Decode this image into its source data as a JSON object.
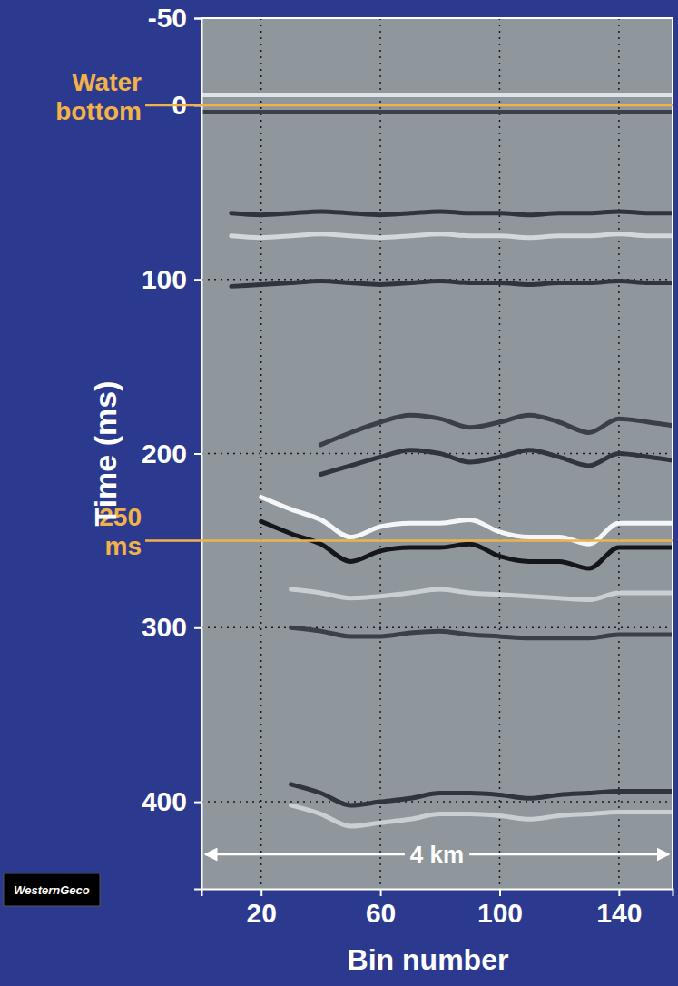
{
  "chart_data": {
    "type": "line",
    "x_label": "Bin number",
    "y_label": "Time (ms)",
    "x": [
      0,
      10,
      20,
      30,
      40,
      50,
      60,
      70,
      80,
      90,
      100,
      110,
      120,
      130,
      140,
      150,
      158
    ],
    "series": [
      {
        "color": "#dfe3e6",
        "values": [
          -6,
          -6,
          -6,
          -6,
          -6,
          -6,
          -6,
          -6,
          -6,
          -6,
          -6,
          -6,
          -6,
          -6,
          -6,
          -6,
          -6
        ]
      },
      {
        "color": "#3a3f48",
        "values": [
          4,
          4,
          4,
          4,
          4,
          4,
          4,
          4,
          4,
          4,
          4,
          4,
          4,
          4,
          4,
          4,
          4
        ]
      },
      {
        "color": "#30343c",
        "values": [
          null,
          62,
          63,
          62,
          61,
          62,
          63,
          62,
          61,
          62,
          62,
          63,
          62,
          62,
          61,
          62,
          62
        ]
      },
      {
        "color": "#d3d8dc",
        "values": [
          null,
          75,
          76,
          75,
          74,
          75,
          76,
          75,
          74,
          75,
          75,
          76,
          75,
          75,
          74,
          75,
          75
        ]
      },
      {
        "color": "#30343c",
        "values": [
          null,
          104,
          103,
          102,
          101,
          102,
          103,
          102,
          101,
          102,
          102,
          103,
          102,
          102,
          101,
          102,
          102
        ]
      },
      {
        "color": "#3a3f48",
        "values": [
          null,
          null,
          null,
          null,
          195,
          188,
          182,
          178,
          180,
          185,
          182,
          178,
          182,
          188,
          180,
          182,
          184
        ]
      },
      {
        "color": "#30343c",
        "values": [
          null,
          null,
          null,
          null,
          212,
          207,
          202,
          198,
          200,
          205,
          202,
          198,
          202,
          207,
          200,
          202,
          204
        ]
      },
      {
        "color": "#f4f6f7",
        "values": [
          null,
          null,
          225,
          232,
          238,
          248,
          242,
          240,
          240,
          238,
          245,
          248,
          248,
          252,
          240,
          240,
          240
        ]
      },
      {
        "color": "#14161a",
        "values": [
          null,
          null,
          239,
          246,
          252,
          262,
          256,
          254,
          254,
          252,
          259,
          262,
          262,
          266,
          254,
          254,
          254
        ]
      },
      {
        "color": "#c9cfd3",
        "values": [
          null,
          null,
          null,
          278,
          280,
          283,
          282,
          280,
          278,
          280,
          281,
          282,
          283,
          284,
          280,
          280,
          280
        ]
      },
      {
        "color": "#3a3f48",
        "values": [
          null,
          null,
          null,
          300,
          302,
          305,
          305,
          303,
          302,
          304,
          305,
          306,
          306,
          306,
          304,
          304,
          304
        ]
      },
      {
        "color": "#30343c",
        "values": [
          null,
          null,
          null,
          390,
          395,
          402,
          400,
          398,
          395,
          395,
          396,
          398,
          396,
          395,
          394,
          394,
          394
        ]
      },
      {
        "color": "#c9cfd3",
        "values": [
          null,
          null,
          null,
          402,
          407,
          414,
          412,
          410,
          407,
          407,
          408,
          410,
          408,
          407,
          406,
          406,
          406
        ]
      }
    ],
    "xlim": [
      0,
      158
    ],
    "ylim": [
      -50,
      450
    ],
    "xticks": [
      20,
      60,
      100,
      140
    ],
    "yticks": [
      -50,
      0,
      100,
      200,
      300,
      400
    ],
    "grid": true,
    "annotations": [
      {
        "label": "Water bottom",
        "y": 0,
        "color": "#f2b24a"
      },
      {
        "label": "250 ms",
        "y": 250,
        "color": "#f2b24a"
      }
    ],
    "scale_bar": {
      "label": "4 km",
      "from": 0,
      "to": 158
    },
    "logo": "WesternGeco"
  }
}
